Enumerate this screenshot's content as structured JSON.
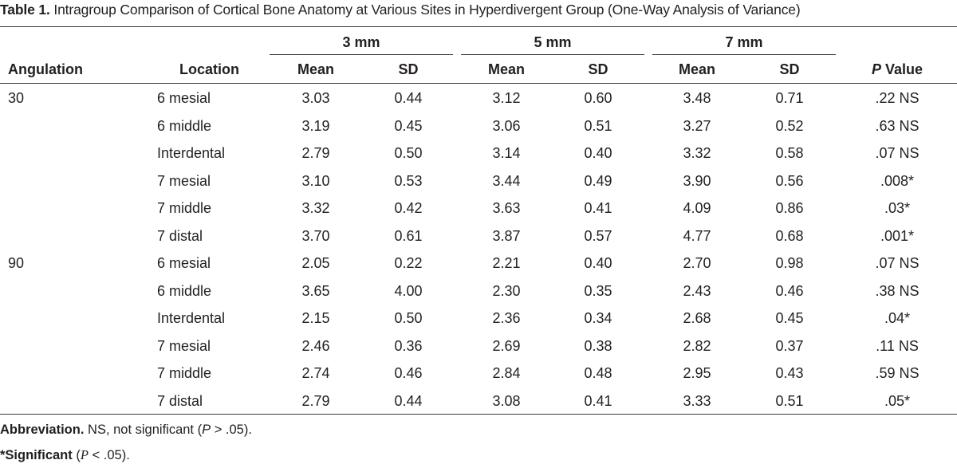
{
  "caption": {
    "label": "Table 1.",
    "title": "Intragroup Comparison of Cortical Bone Anatomy at Various Sites in Hyperdivergent Group (One-Way Analysis of Variance)"
  },
  "header": {
    "groups": [
      "3 mm",
      "5 mm",
      "7 mm"
    ],
    "angulation": "Angulation",
    "location": "Location",
    "mean": "Mean",
    "sd": "SD",
    "p_italic": "P",
    "p_rest": " Value"
  },
  "rows": [
    {
      "angulation": "30",
      "location": "6 mesial",
      "m3": "3.03",
      "s3": "0.44",
      "m5": "3.12",
      "s5": "0.60",
      "m7": "3.48",
      "s7": "0.71",
      "p": ".22 NS"
    },
    {
      "angulation": "",
      "location": "6 middle",
      "m3": "3.19",
      "s3": "0.45",
      "m5": "3.06",
      "s5": "0.51",
      "m7": "3.27",
      "s7": "0.52",
      "p": ".63 NS"
    },
    {
      "angulation": "",
      "location": "Interdental",
      "m3": "2.79",
      "s3": "0.50",
      "m5": "3.14",
      "s5": "0.40",
      "m7": "3.32",
      "s7": "0.58",
      "p": ".07 NS"
    },
    {
      "angulation": "",
      "location": "7 mesial",
      "m3": "3.10",
      "s3": "0.53",
      "m5": "3.44",
      "s5": "0.49",
      "m7": "3.90",
      "s7": "0.56",
      "p": ".008*"
    },
    {
      "angulation": "",
      "location": "7 middle",
      "m3": "3.32",
      "s3": "0.42",
      "m5": "3.63",
      "s5": "0.41",
      "m7": "4.09",
      "s7": "0.86",
      "p": ".03*"
    },
    {
      "angulation": "",
      "location": "7 distal",
      "m3": "3.70",
      "s3": "0.61",
      "m5": "3.87",
      "s5": "0.57",
      "m7": "4.77",
      "s7": "0.68",
      "p": ".001*"
    },
    {
      "angulation": "90",
      "location": "6 mesial",
      "m3": "2.05",
      "s3": "0.22",
      "m5": "2.21",
      "s5": "0.40",
      "m7": "2.70",
      "s7": "0.98",
      "p": ".07 NS"
    },
    {
      "angulation": "",
      "location": "6 middle",
      "m3": "3.65",
      "s3": "4.00",
      "m5": "2.30",
      "s5": "0.35",
      "m7": "2.43",
      "s7": "0.46",
      "p": ".38 NS"
    },
    {
      "angulation": "",
      "location": "Interdental",
      "m3": "2.15",
      "s3": "0.50",
      "m5": "2.36",
      "s5": "0.34",
      "m7": "2.68",
      "s7": "0.45",
      "p": ".04*"
    },
    {
      "angulation": "",
      "location": "7 mesial",
      "m3": "2.46",
      "s3": "0.36",
      "m5": "2.69",
      "s5": "0.38",
      "m7": "2.82",
      "s7": "0.37",
      "p": ".11 NS"
    },
    {
      "angulation": "",
      "location": "7 middle",
      "m3": "2.74",
      "s3": "0.46",
      "m5": "2.84",
      "s5": "0.48",
      "m7": "2.95",
      "s7": "0.43",
      "p": ".59 NS"
    },
    {
      "angulation": "",
      "location": "7 distal",
      "m3": "2.79",
      "s3": "0.44",
      "m5": "3.08",
      "s5": "0.41",
      "m7": "3.33",
      "s7": "0.51",
      "p": ".05*"
    }
  ],
  "footnotes": {
    "abbr_label": "Abbreviation.",
    "abbr_text_1": " NS, not significant (",
    "abbr_p": "P",
    "abbr_text_2": " > .05).",
    "sig_label": "*Significant",
    "sig_text_1": " (",
    "sig_p": "P",
    "sig_text_2": " < .05)."
  }
}
